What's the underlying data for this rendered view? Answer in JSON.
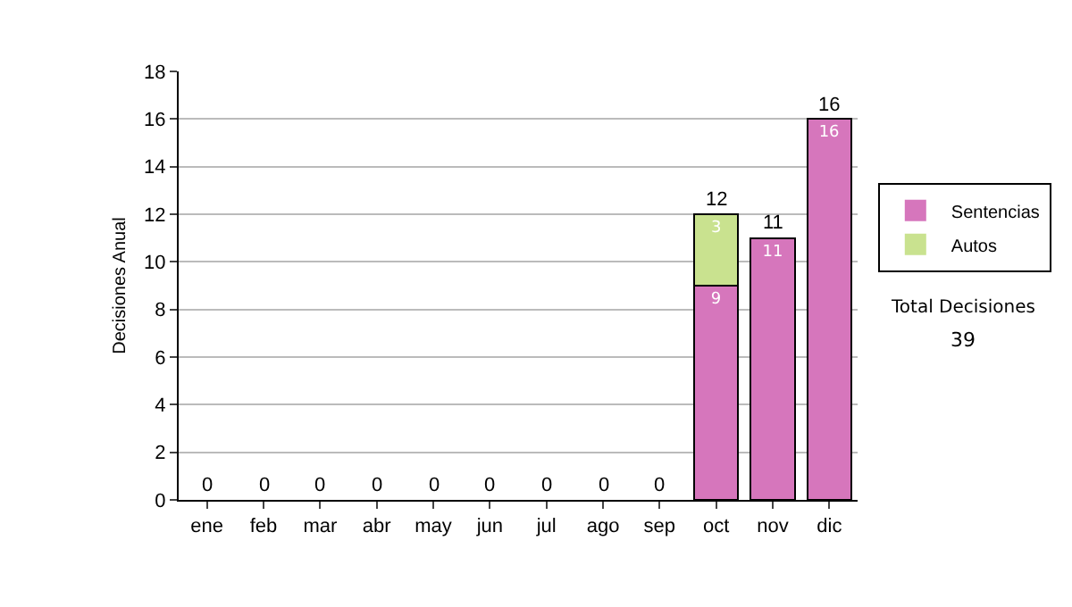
{
  "chart_data": {
    "type": "bar",
    "ylabel": "Decisiones Anual",
    "categories": [
      "ene",
      "feb",
      "mar",
      "abr",
      "may",
      "jun",
      "jul",
      "ago",
      "sep",
      "oct",
      "nov",
      "dic"
    ],
    "series": [
      {
        "name": "Sentencias",
        "color": "#d676bc",
        "values": [
          0,
          0,
          0,
          0,
          0,
          0,
          0,
          0,
          0,
          9,
          11,
          16
        ],
        "value_labels": [
          null,
          null,
          null,
          null,
          null,
          null,
          null,
          null,
          null,
          "9",
          "11",
          "16"
        ]
      },
      {
        "name": "Autos",
        "color": "#c9e28f",
        "values": [
          0,
          0,
          0,
          0,
          0,
          0,
          0,
          0,
          0,
          3,
          0,
          0
        ],
        "value_labels": [
          null,
          null,
          null,
          null,
          null,
          null,
          null,
          null,
          null,
          "3",
          null,
          null
        ]
      }
    ],
    "stacked": true,
    "totals": [
      "0",
      "0",
      "0",
      "0",
      "0",
      "0",
      "0",
      "0",
      "0",
      "12",
      "11",
      "16"
    ],
    "ylim": [
      0,
      18
    ],
    "yticks": [
      0,
      2,
      4,
      6,
      8,
      10,
      12,
      14,
      16,
      18
    ],
    "grid": "y",
    "legend": "right",
    "annotations": [
      "Total Decisiones",
      "39"
    ]
  }
}
